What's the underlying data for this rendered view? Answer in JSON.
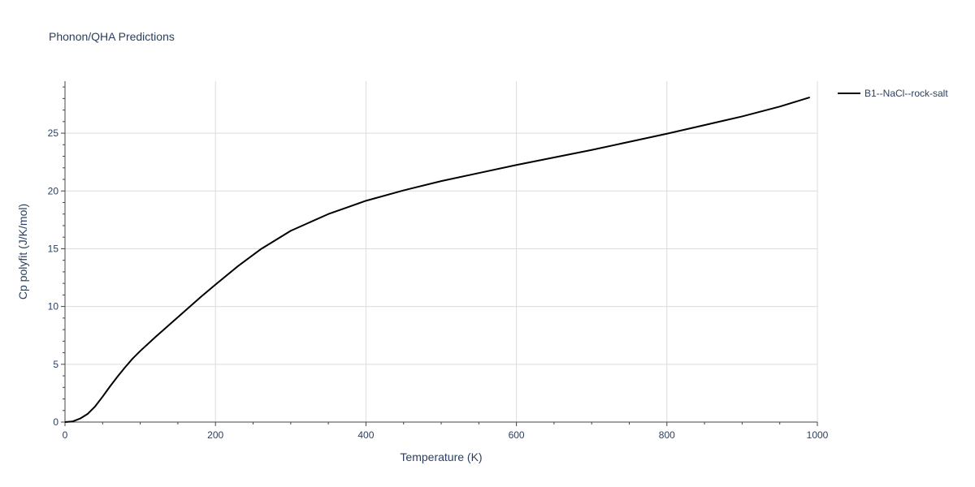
{
  "chart_data": {
    "type": "line",
    "title": "Phonon/QHA Predictions",
    "xlabel": "Temperature (K)",
    "ylabel": "Cp polyfit (J/K/mol)",
    "xlim": [
      0,
      1000
    ],
    "ylim": [
      0,
      29.5
    ],
    "x_ticks": [
      0,
      200,
      400,
      600,
      800,
      1000
    ],
    "y_ticks": [
      0,
      5,
      10,
      15,
      20,
      25
    ],
    "grid": true,
    "legend_position": "top-right",
    "series": [
      {
        "name": "B1--NaCl--rock-salt",
        "color": "#000000",
        "x": [
          0,
          10,
          20,
          30,
          40,
          50,
          60,
          70,
          80,
          90,
          100,
          120,
          140,
          160,
          180,
          200,
          230,
          260,
          300,
          350,
          400,
          450,
          500,
          550,
          600,
          650,
          700,
          750,
          800,
          850,
          900,
          950,
          990
        ],
        "y": [
          0,
          0.05,
          0.3,
          0.7,
          1.35,
          2.2,
          3.1,
          3.95,
          4.75,
          5.5,
          6.15,
          7.35,
          8.5,
          9.65,
          10.8,
          11.9,
          13.5,
          14.95,
          16.55,
          18.0,
          19.15,
          20.05,
          20.85,
          21.55,
          22.25,
          22.9,
          23.55,
          24.25,
          24.95,
          25.7,
          26.45,
          27.3,
          28.1
        ]
      }
    ]
  }
}
